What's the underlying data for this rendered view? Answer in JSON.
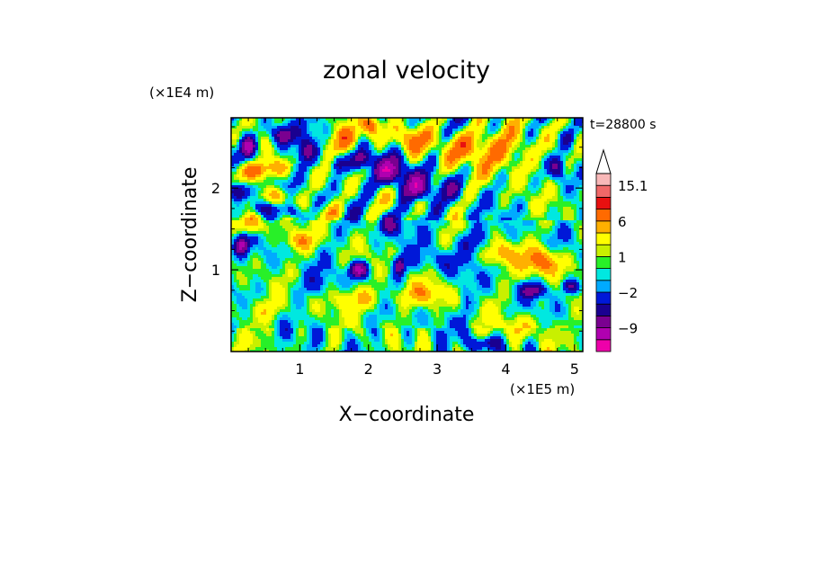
{
  "chart_data": {
    "type": "heatmap",
    "title": "zonal velocity",
    "xlabel": "X−coordinate",
    "ylabel": "Z−coordinate",
    "x_scale_label": "(×1E5 m)",
    "y_scale_label": "(×1E4 m)",
    "time_label": "t=28800 s",
    "xlim": [
      0,
      5.12
    ],
    "ylim": [
      0,
      2.86
    ],
    "x_ticks": [
      {
        "value": 1,
        "label": "1"
      },
      {
        "value": 2,
        "label": "2"
      },
      {
        "value": 3,
        "label": "3"
      },
      {
        "value": 4,
        "label": "4"
      },
      {
        "value": 5,
        "label": "5"
      }
    ],
    "y_ticks": [
      {
        "value": 1,
        "label": "1"
      },
      {
        "value": 2,
        "label": "2"
      }
    ],
    "y_minor_ticks": [
      0.25,
      0.5,
      0.75,
      1.25,
      1.5,
      1.75,
      2.25,
      2.5,
      2.75
    ],
    "x_minor_ticks": [
      0.25,
      0.5,
      0.75,
      1.25,
      1.5,
      1.75,
      2.25,
      2.5,
      2.75,
      3.25,
      3.5,
      3.75,
      4.25,
      4.5,
      4.75
    ],
    "colorbar": {
      "levels": [
        -15.1,
        -12,
        -9,
        -6,
        -4,
        -2,
        -1,
        0,
        1,
        2,
        4,
        6,
        9,
        12,
        15.1
      ],
      "colors": [
        "#ee00aa",
        "#b000b0",
        "#7a0090",
        "#1a0090",
        "#0018d8",
        "#00aaff",
        "#00e8e0",
        "#28f028",
        "#c8f000",
        "#ffff00",
        "#ffb000",
        "#ff6a00",
        "#e81010",
        "#f06868",
        "#f8b8b8"
      ],
      "extend_top": true,
      "labels": [
        {
          "value": 15.1,
          "label": "15.1"
        },
        {
          "value": 6,
          "label": "6"
        },
        {
          "value": 1,
          "label": "1"
        },
        {
          "value": -2,
          "label": "−2"
        },
        {
          "value": -9,
          "label": "−9"
        }
      ]
    },
    "features": [
      {
        "x": 0.25,
        "z": 2.5,
        "u": -10,
        "sx": 0.08,
        "sz": 0.1
      },
      {
        "x": 0.75,
        "z": 2.65,
        "u": -9,
        "sx": 0.12,
        "sz": 0.09
      },
      {
        "x": 1.1,
        "z": 2.45,
        "u": -7,
        "sx": 0.1,
        "sz": 0.12
      },
      {
        "x": 1.55,
        "z": 2.3,
        "u": -6,
        "sx": 0.08,
        "sz": 0.08
      },
      {
        "x": 1.9,
        "z": 2.35,
        "u": -7,
        "sx": 0.1,
        "sz": 0.08
      },
      {
        "x": 2.35,
        "z": 2.2,
        "u": -10,
        "sx": 0.18,
        "sz": 0.12
      },
      {
        "x": 2.7,
        "z": 2.0,
        "u": -8,
        "sx": 0.15,
        "sz": 0.1
      },
      {
        "x": 0.1,
        "z": 1.95,
        "u": -9,
        "sx": 0.1,
        "sz": 0.08
      },
      {
        "x": 0.45,
        "z": 1.75,
        "u": -6,
        "sx": 0.12,
        "sz": 0.06
      },
      {
        "x": 0.9,
        "z": 1.7,
        "u": -5,
        "sx": 0.1,
        "sz": 0.06
      },
      {
        "x": 0.15,
        "z": 1.3,
        "u": -9,
        "sx": 0.07,
        "sz": 0.08
      },
      {
        "x": 1.85,
        "z": 1.0,
        "u": -10,
        "sx": 0.1,
        "sz": 0.07
      },
      {
        "x": 2.45,
        "z": 1.05,
        "u": -8,
        "sx": 0.06,
        "sz": 0.08
      },
      {
        "x": 2.3,
        "z": 1.55,
        "u": -6,
        "sx": 0.1,
        "sz": 0.07
      },
      {
        "x": 3.5,
        "z": 1.35,
        "u": -4,
        "sx": 0.15,
        "sz": 0.1
      },
      {
        "x": 3.05,
        "z": 1.1,
        "u": -3,
        "sx": 0.2,
        "sz": 0.1
      },
      {
        "x": 4.4,
        "z": 0.75,
        "u": -7,
        "sx": 0.12,
        "sz": 0.06
      },
      {
        "x": 4.95,
        "z": 0.8,
        "u": -6,
        "sx": 0.1,
        "sz": 0.06
      },
      {
        "x": 3.7,
        "z": 0.1,
        "u": -5,
        "sx": 0.15,
        "sz": 0.06
      },
      {
        "x": 4.75,
        "z": 2.25,
        "u": -6,
        "sx": 0.08,
        "sz": 0.1
      },
      {
        "x": 4.9,
        "z": 2.6,
        "u": -5,
        "sx": 0.08,
        "sz": 0.1
      },
      {
        "x": 3.2,
        "z": 2.0,
        "u": -3,
        "sx": 0.15,
        "sz": 0.1
      },
      {
        "x": 0.3,
        "z": 2.2,
        "u": 7,
        "sx": 0.15,
        "sz": 0.08
      },
      {
        "x": 0.65,
        "z": 2.25,
        "u": 6,
        "sx": 0.15,
        "sz": 0.08
      },
      {
        "x": 1.65,
        "z": 2.6,
        "u": 7,
        "sx": 0.15,
        "sz": 0.12
      },
      {
        "x": 2.05,
        "z": 2.75,
        "u": 8,
        "sx": 0.1,
        "sz": 0.1
      },
      {
        "x": 2.6,
        "z": 2.6,
        "u": 6,
        "sx": 0.15,
        "sz": 0.1
      },
      {
        "x": 3.4,
        "z": 2.5,
        "u": 6,
        "sx": 0.3,
        "sz": 0.15
      },
      {
        "x": 4.1,
        "z": 2.45,
        "u": 5,
        "sx": 0.25,
        "sz": 0.2
      },
      {
        "x": 4.55,
        "z": 1.1,
        "u": 8,
        "sx": 0.18,
        "sz": 0.12
      },
      {
        "x": 3.95,
        "z": 1.2,
        "u": 5,
        "sx": 0.15,
        "sz": 0.1
      },
      {
        "x": 0.3,
        "z": 1.55,
        "u": 7,
        "sx": 0.12,
        "sz": 0.08
      },
      {
        "x": 1.0,
        "z": 1.35,
        "u": 5,
        "sx": 0.15,
        "sz": 0.08
      },
      {
        "x": 1.45,
        "z": 1.7,
        "u": 5,
        "sx": 0.12,
        "sz": 0.08
      },
      {
        "x": 0.7,
        "z": 1.9,
        "u": 7,
        "sx": 0.1,
        "sz": 0.07
      },
      {
        "x": 1.9,
        "z": 0.65,
        "u": 4,
        "sx": 0.3,
        "sz": 0.1
      },
      {
        "x": 2.8,
        "z": 0.7,
        "u": 4,
        "sx": 0.25,
        "sz": 0.1
      },
      {
        "x": 4.2,
        "z": 0.3,
        "u": 3,
        "sx": 0.25,
        "sz": 0.1
      },
      {
        "x": 1.2,
        "z": 0.8,
        "u": -1.5,
        "sx": 0.3,
        "sz": 0.1
      },
      {
        "x": 0.4,
        "z": 0.5,
        "u": 2.5,
        "sx": 0.3,
        "sz": 0.1
      },
      {
        "x": 3.4,
        "z": 0.5,
        "u": -1.5,
        "sx": 0.05,
        "sz": 0.35
      },
      {
        "x": 2.7,
        "z": 1.65,
        "u": -1.5,
        "sx": 0.3,
        "sz": 0.15
      }
    ]
  }
}
